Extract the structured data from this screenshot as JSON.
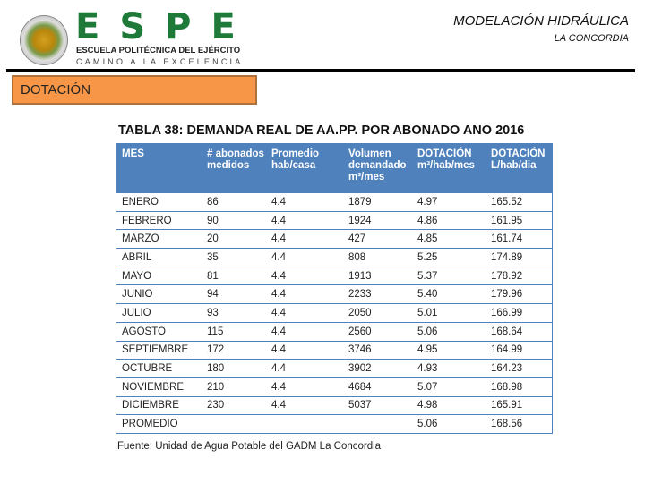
{
  "header": {
    "logo_text": "ESPE",
    "school": "ESCUELA POLITÉCNICA DEL EJÉRCITO",
    "motto": "CAMINO A LA EXCELENCIA",
    "title": "MODELACIÓN HIDRÁULICA",
    "subtitle": "LA CONCORDIA"
  },
  "section": "DOTACIÓN",
  "table": {
    "title": "TABLA 38: DEMANDA REAL DE AA.PP. POR ABONADO ANO 2016",
    "columns": [
      "MES",
      "# abonados medidos",
      "Promedio hab/casa",
      "Volumen demandado m³/mes",
      "DOTACIÓN m³/hab/mes",
      "DOTACIÓN L/hab/dia"
    ],
    "rows": [
      [
        "ENERO",
        "86",
        "4.4",
        "1879",
        "4.97",
        "165.52"
      ],
      [
        "FEBRERO",
        "90",
        "4.4",
        "1924",
        "4.86",
        "161.95"
      ],
      [
        "MARZO",
        "20",
        "4.4",
        "427",
        "4.85",
        "161.74"
      ],
      [
        "ABRIL",
        "35",
        "4.4",
        "808",
        "5.25",
        "174.89"
      ],
      [
        "MAYO",
        "81",
        "4.4",
        "1913",
        "5.37",
        "178.92"
      ],
      [
        "JUNIO",
        "94",
        "4.4",
        "2233",
        "5.40",
        "179.96"
      ],
      [
        "JULIO",
        "93",
        "4.4",
        "2050",
        "5.01",
        "166.99"
      ],
      [
        "AGOSTO",
        "115",
        "4.4",
        "2560",
        "5.06",
        "168.64"
      ],
      [
        "SEPTIEMBRE",
        "172",
        "4.4",
        "3746",
        "4.95",
        "164.99"
      ],
      [
        "OCTUBRE",
        "180",
        "4.4",
        "3902",
        "4.93",
        "164.23"
      ],
      [
        "NOVIEMBRE",
        "210",
        "4.4",
        "4684",
        "5.07",
        "168.98"
      ],
      [
        "DICIEMBRE",
        "230",
        "4.4",
        "5037",
        "4.98",
        "165.91"
      ],
      [
        "PROMEDIO",
        "",
        "",
        "",
        "5.06",
        "168.56"
      ]
    ],
    "source": "Fuente: Unidad de Agua Potable del GADM La Concordia"
  }
}
